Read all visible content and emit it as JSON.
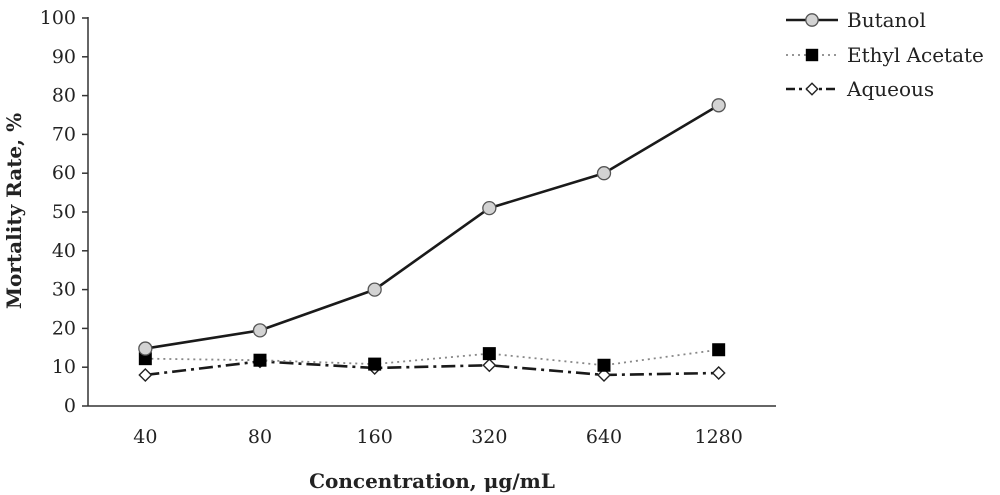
{
  "chart_data": {
    "type": "line",
    "title": "",
    "xlabel": "Concentration, μg/mL",
    "ylabel": "Mortality Rate, %",
    "categories": [
      "40",
      "80",
      "160",
      "320",
      "640",
      "1280"
    ],
    "ylim": [
      0,
      100
    ],
    "yticks": [
      "0",
      "10",
      "20",
      "30",
      "40",
      "50",
      "60",
      "70",
      "80",
      "90",
      "100"
    ],
    "grid": false,
    "legend": "top-right",
    "series": [
      {
        "name": "Butanol",
        "values": [
          14.8,
          19.5,
          30,
          51,
          60,
          77.5
        ],
        "marker": "circle",
        "line_style": "solid",
        "color": "#1a1a1a",
        "marker_fill": "#d3d3d3"
      },
      {
        "name": "Ethyl Acetate",
        "values": [
          12.2,
          11.8,
          10.8,
          13.5,
          10.5,
          14.5
        ],
        "marker": "square",
        "line_style": "dotted",
        "color": "#888888",
        "marker_fill": "#000000"
      },
      {
        "name": "Aqueous",
        "values": [
          8,
          11.5,
          9.8,
          10.5,
          8,
          8.5
        ],
        "marker": "diamond",
        "line_style": "dashdot",
        "color": "#1a1a1a",
        "marker_fill": "#ffffff"
      }
    ]
  }
}
